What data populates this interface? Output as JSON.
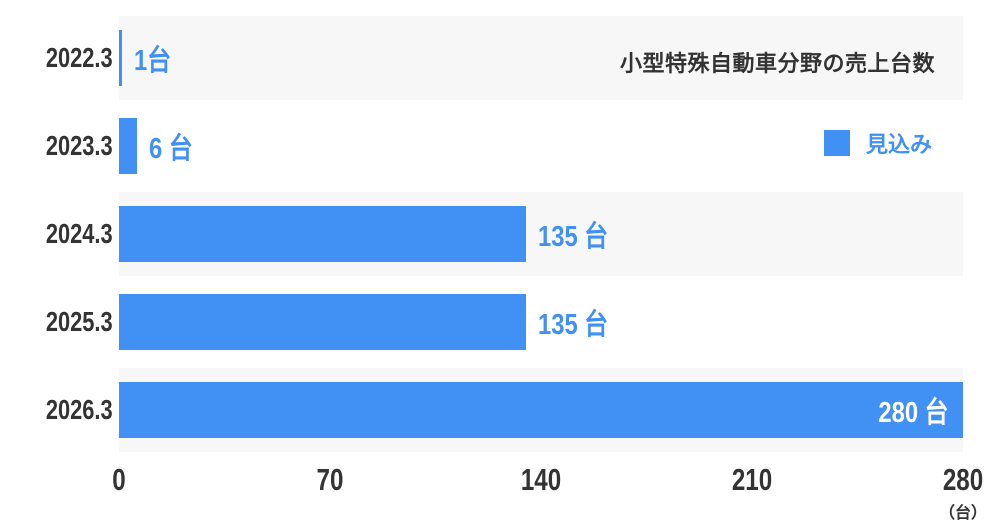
{
  "colors": {
    "bar": "#4190F4",
    "accent": "#4190F4",
    "band": "#F7F7F8",
    "ink": "#333333",
    "inside_label": "#FFFFFF"
  },
  "chart_data": {
    "type": "bar",
    "orientation": "horizontal",
    "title": "小型特殊自動車分野の売上台数",
    "legend": {
      "label": "見込み",
      "position": "top-right"
    },
    "categories": [
      "2022.3",
      "2023.3",
      "2024.3",
      "2025.3",
      "2026.3"
    ],
    "values": [
      1,
      6,
      135,
      135,
      280
    ],
    "value_labels": [
      "1台",
      "6 台",
      "135 台",
      "135 台",
      "280 台"
    ],
    "xticks": [
      "0",
      "70",
      "140",
      "210",
      "280"
    ],
    "xlim": [
      0,
      280
    ],
    "x_unit": "（台）",
    "grid": false,
    "band_rows": [
      0,
      2,
      4
    ]
  }
}
